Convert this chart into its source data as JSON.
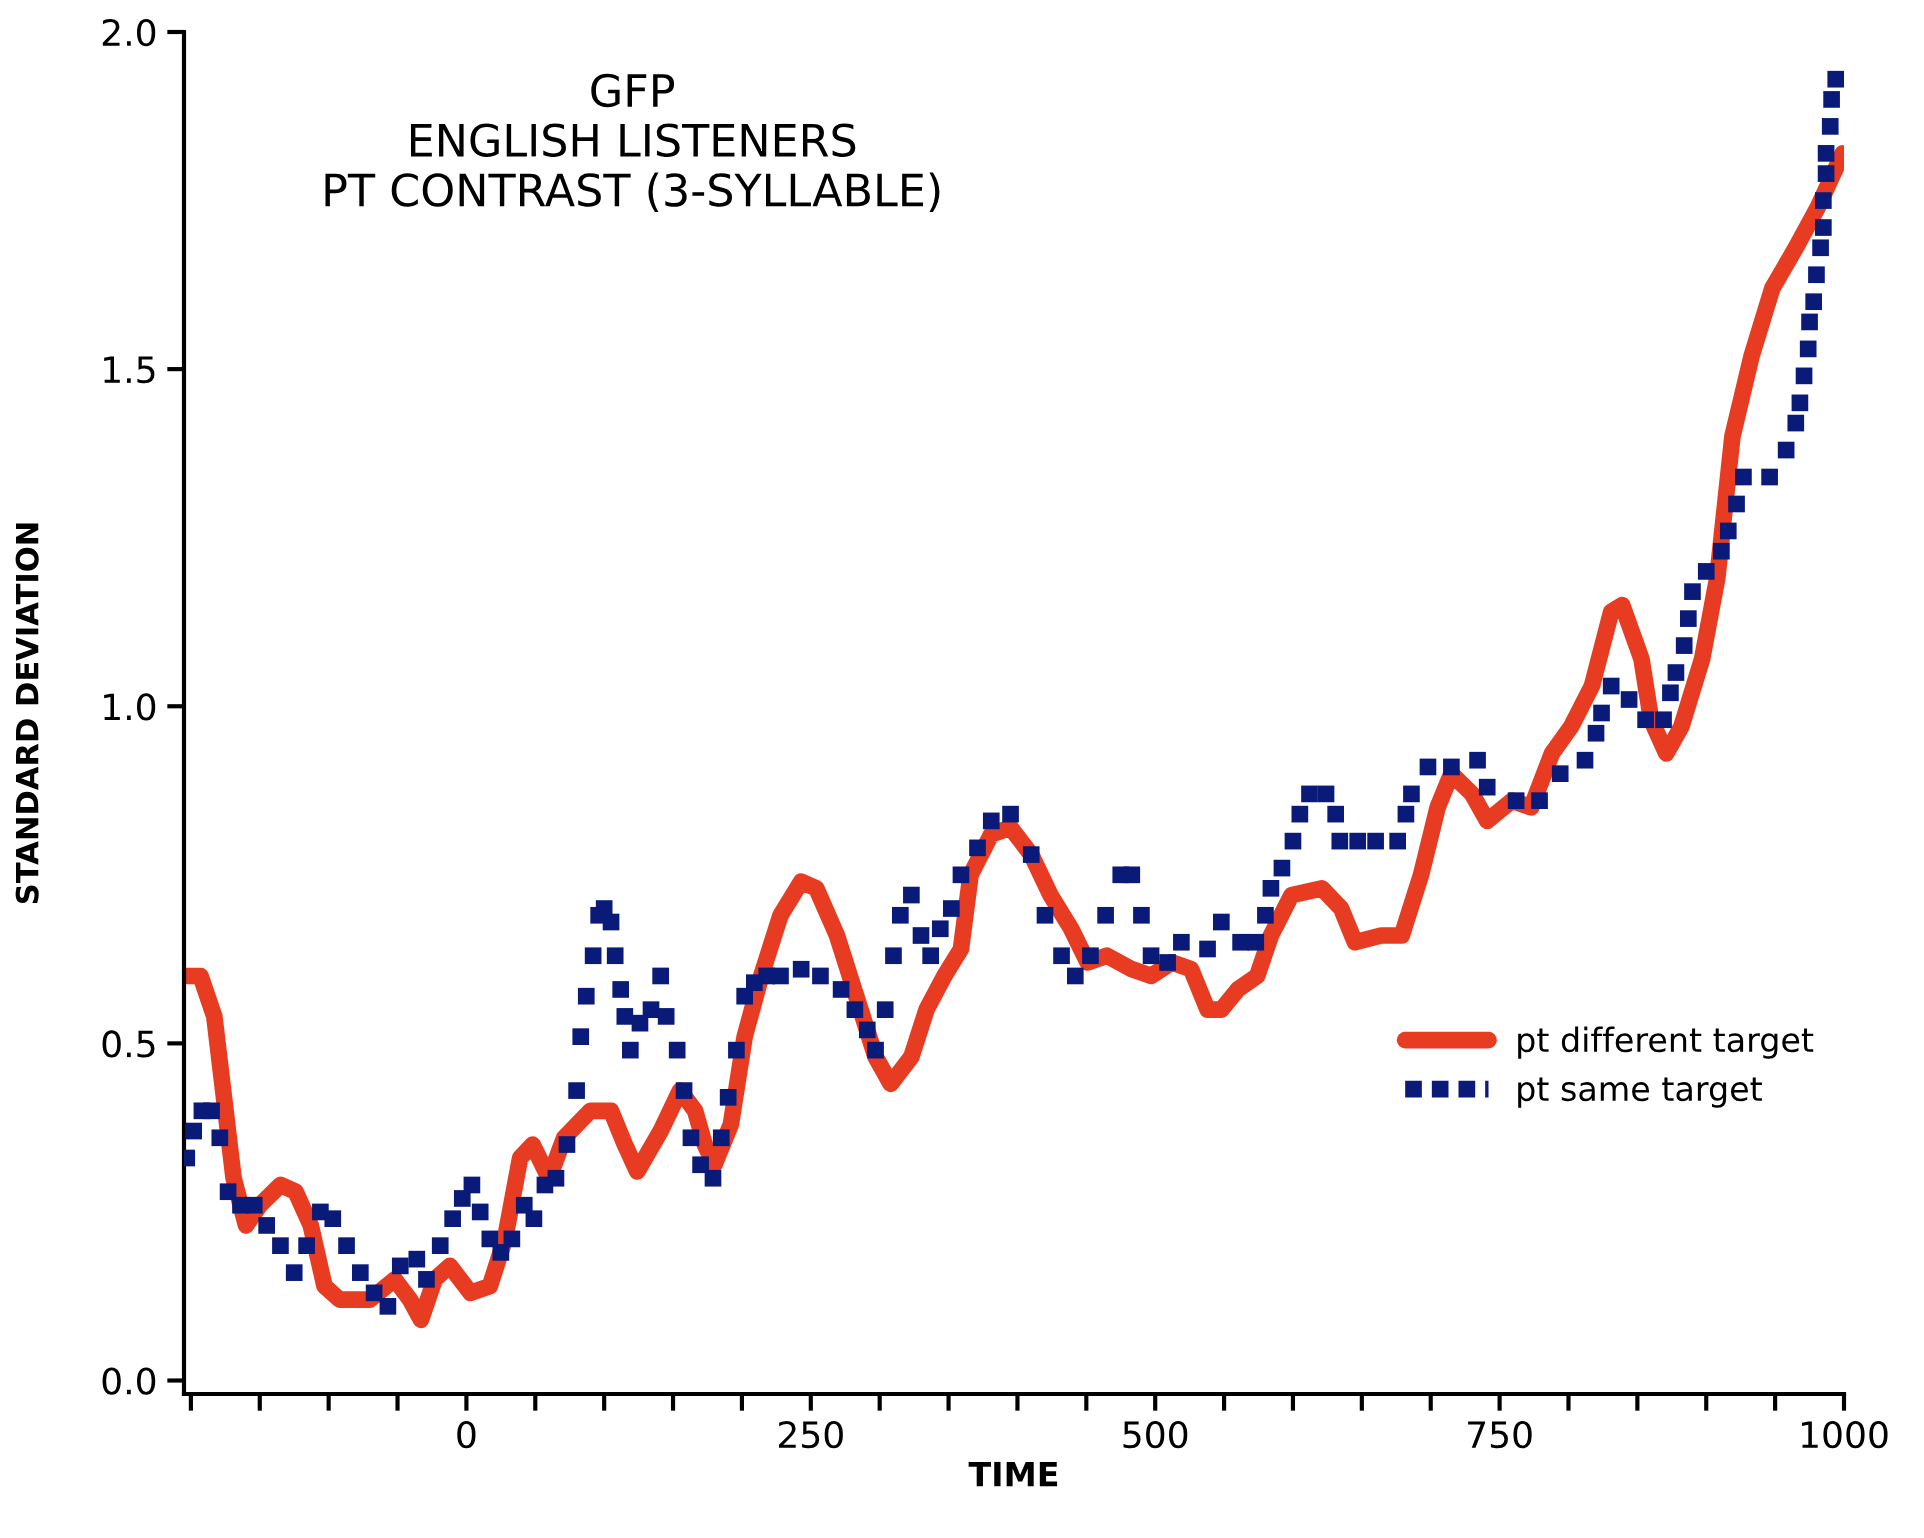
{
  "chart_data": {
    "type": "line",
    "title": "GFP\nENGLISH LISTENERS\nPT CONTRAST (3-SYLLABLE)",
    "xlabel": "TIME",
    "ylabel": "STANDARD DEVIATION",
    "xlim": [
      -205,
      1000
    ],
    "ylim": [
      -0.02,
      2.0
    ],
    "xticks": [
      {
        "value": -200,
        "label": null
      },
      {
        "value": -150,
        "label": null
      },
      {
        "value": -100,
        "label": null
      },
      {
        "value": -50,
        "label": null
      },
      0,
      {
        "value": 50,
        "label": null
      },
      {
        "value": 100,
        "label": null
      },
      {
        "value": 150,
        "label": null
      },
      {
        "value": 200,
        "label": null
      },
      250,
      {
        "value": 300,
        "label": null
      },
      {
        "value": 350,
        "label": null
      },
      {
        "value": 400,
        "label": null
      },
      {
        "value": 450,
        "label": null
      },
      500,
      {
        "value": 550,
        "label": null
      },
      {
        "value": 600,
        "label": null
      },
      {
        "value": 650,
        "label": null
      },
      {
        "value": 700,
        "label": null
      },
      750,
      {
        "value": 800,
        "label": null
      },
      {
        "value": 850,
        "label": null
      },
      {
        "value": 900,
        "label": null
      },
      {
        "value": 950,
        "label": null
      },
      1000
    ],
    "yticks": [
      {
        "value": 0,
        "label": "0.0"
      },
      {
        "value": 0.5,
        "label": "0.5"
      },
      {
        "value": 1,
        "label": "1.0"
      },
      {
        "value": 1.5,
        "label": "1.5"
      },
      {
        "value": 2,
        "label": "2.0"
      }
    ],
    "grid": false,
    "legend": "right",
    "series": [
      {
        "name": "pt different target",
        "color": "#e83c22",
        "line_style": "solid",
        "marker": "none",
        "x": [
          -203,
          -193,
          -183,
          -176,
          -169,
          -160,
          -150,
          -135,
          -124,
          -113,
          -103,
          -92,
          -70,
          -52,
          -41,
          -33,
          -23,
          -12,
          3,
          17,
          28,
          39,
          48,
          60,
          71,
          90,
          105,
          115,
          124,
          141,
          155,
          166,
          173,
          180,
          192,
          202,
          214,
          228,
          243,
          254,
          269,
          283,
          297,
          308,
          323,
          334,
          347,
          359,
          366,
          381,
          395,
          410,
          424,
          439,
          451,
          465,
          483,
          497,
          512,
          526,
          538,
          548,
          560,
          574,
          584,
          599,
          621,
          635,
          645,
          664,
          679,
          693,
          705,
          715,
          730,
          741,
          759,
          773,
          788,
          802,
          817,
          831,
          839,
          853,
          860,
          871,
          882,
          897,
          908,
          919,
          933,
          948,
          965,
          981,
          999
        ],
        "values": [
          0.6,
          0.6,
          0.54,
          0.42,
          0.3,
          0.23,
          0.26,
          0.29,
          0.28,
          0.23,
          0.14,
          0.12,
          0.12,
          0.15,
          0.12,
          0.09,
          0.15,
          0.17,
          0.13,
          0.14,
          0.21,
          0.33,
          0.35,
          0.3,
          0.36,
          0.4,
          0.4,
          0.35,
          0.31,
          0.37,
          0.43,
          0.4,
          0.35,
          0.32,
          0.38,
          0.51,
          0.6,
          0.69,
          0.74,
          0.73,
          0.66,
          0.57,
          0.48,
          0.44,
          0.48,
          0.55,
          0.6,
          0.64,
          0.75,
          0.81,
          0.82,
          0.78,
          0.72,
          0.67,
          0.62,
          0.63,
          0.61,
          0.6,
          0.62,
          0.61,
          0.55,
          0.55,
          0.58,
          0.6,
          0.66,
          0.72,
          0.73,
          0.7,
          0.65,
          0.66,
          0.66,
          0.75,
          0.85,
          0.9,
          0.87,
          0.83,
          0.86,
          0.85,
          0.93,
          0.97,
          1.03,
          1.14,
          1.15,
          1.07,
          0.98,
          0.93,
          0.97,
          1.07,
          1.19,
          1.4,
          1.52,
          1.62,
          1.68,
          1.74,
          1.82
        ]
      },
      {
        "name": "pt same target",
        "type": "scatter",
        "color": "#0a1a78",
        "marker": "square",
        "x": [
          -203,
          -198,
          -192,
          -185,
          -179,
          -173,
          -164,
          -154,
          -145,
          -135,
          -125,
          -116,
          -106,
          -97,
          -87,
          -77,
          -67,
          -57,
          -48,
          -36,
          -29,
          -19,
          -10,
          -3,
          4,
          10,
          17,
          25,
          33,
          42,
          49,
          57,
          65,
          73,
          80,
          83,
          87,
          92,
          96,
          100,
          105,
          108,
          112,
          115,
          119,
          126,
          134,
          141,
          145,
          153,
          158,
          163,
          170,
          179,
          185,
          190,
          196,
          202,
          209,
          218,
          228,
          243,
          257,
          272,
          282,
          291,
          297,
          304,
          310,
          315,
          323,
          330,
          337,
          344,
          352,
          359,
          371,
          381,
          395,
          410,
          420,
          432,
          442,
          453,
          464,
          475,
          483,
          490,
          497,
          509,
          519,
          538,
          548,
          562,
          573,
          580,
          584,
          592,
          600,
          605,
          612,
          624,
          631,
          634,
          647,
          660,
          676,
          682,
          686,
          698,
          715,
          734,
          741,
          762,
          779,
          794,
          812,
          820,
          824,
          831,
          844,
          856,
          869,
          874,
          878,
          884,
          887,
          890,
          900,
          911,
          916,
          922,
          927,
          946,
          958,
          965,
          968,
          971,
          974,
          975,
          978,
          980,
          983,
          985,
          985,
          987,
          987,
          990,
          991,
          994
        ],
        "values": [
          0.33,
          0.37,
          0.4,
          0.4,
          0.36,
          0.28,
          0.26,
          0.26,
          0.23,
          0.2,
          0.16,
          0.2,
          0.25,
          0.24,
          0.2,
          0.16,
          0.13,
          0.11,
          0.17,
          0.18,
          0.15,
          0.2,
          0.24,
          0.27,
          0.29,
          0.25,
          0.21,
          0.19,
          0.21,
          0.26,
          0.24,
          0.29,
          0.3,
          0.35,
          0.43,
          0.51,
          0.57,
          0.63,
          0.69,
          0.7,
          0.68,
          0.63,
          0.58,
          0.54,
          0.49,
          0.53,
          0.55,
          0.6,
          0.54,
          0.49,
          0.43,
          0.36,
          0.32,
          0.3,
          0.36,
          0.42,
          0.49,
          0.57,
          0.59,
          0.6,
          0.6,
          0.61,
          0.6,
          0.58,
          0.55,
          0.52,
          0.49,
          0.55,
          0.63,
          0.69,
          0.72,
          0.66,
          0.63,
          0.67,
          0.7,
          0.75,
          0.79,
          0.83,
          0.84,
          0.78,
          0.69,
          0.63,
          0.6,
          0.63,
          0.69,
          0.75,
          0.75,
          0.69,
          0.63,
          0.62,
          0.65,
          0.64,
          0.68,
          0.65,
          0.65,
          0.69,
          0.73,
          0.76,
          0.8,
          0.84,
          0.87,
          0.87,
          0.84,
          0.8,
          0.8,
          0.8,
          0.8,
          0.84,
          0.87,
          0.91,
          0.91,
          0.92,
          0.88,
          0.86,
          0.86,
          0.9,
          0.92,
          0.96,
          0.99,
          1.03,
          1.01,
          0.98,
          0.98,
          1.02,
          1.05,
          1.09,
          1.13,
          1.17,
          1.2,
          1.23,
          1.26,
          1.3,
          1.34,
          1.34,
          1.38,
          1.42,
          1.45,
          1.49,
          1.53,
          1.57,
          1.6,
          1.64,
          1.68,
          1.71,
          1.75,
          1.79,
          1.82,
          1.86,
          1.9,
          1.93
        ]
      }
    ]
  }
}
